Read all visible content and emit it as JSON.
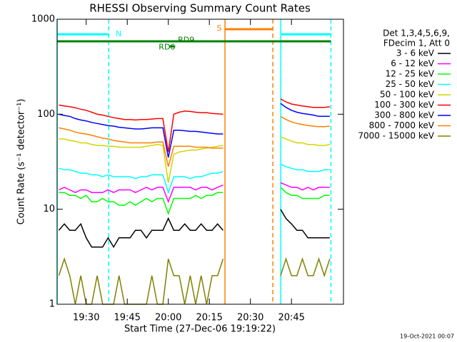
{
  "chart_data": {
    "type": "line",
    "title": "RHESSI Observing Summary Count Rates",
    "xlabel": "Start Time (27-Dec-06 19:19:22)",
    "ylabel": "Count Rate (s⁻¹ detector⁻¹)",
    "timestamp": "19-Oct-2021 00:07",
    "legend_header": [
      "Det 1,3,4,5,6,9,",
      "FDecim 1, Att 0"
    ],
    "log_y": true,
    "xlim": [
      19.37,
      124
    ],
    "ylim": [
      1,
      1000
    ],
    "yticks": [
      1,
      10,
      100,
      1000
    ],
    "xticks": [
      {
        "value": 30,
        "label": "19:30"
      },
      {
        "value": 45,
        "label": "19:45"
      },
      {
        "value": 60,
        "label": "20:00"
      },
      {
        "value": 75,
        "label": "20:15"
      },
      {
        "value": 90,
        "label": "20:30"
      },
      {
        "value": 105,
        "label": "20:45"
      }
    ],
    "x": [
      20,
      22,
      24,
      26,
      28,
      30,
      32,
      34,
      36,
      38,
      40,
      42,
      44,
      46,
      48,
      50,
      52,
      54,
      56,
      58,
      60,
      62,
      64,
      66,
      68,
      70,
      72,
      74,
      76,
      78,
      80,
      90,
      101,
      103,
      105,
      107,
      109,
      111,
      113,
      115,
      117,
      119
    ],
    "series": [
      {
        "name": "3 - 6 keV",
        "color": "#000000",
        "values": [
          6,
          7,
          6,
          6,
          7,
          5,
          4,
          4,
          4,
          5,
          4,
          5,
          5,
          5,
          6,
          6,
          5,
          6,
          6,
          6,
          8,
          6,
          6,
          7,
          6,
          6,
          7,
          6,
          6,
          7,
          6,
          null,
          10,
          8,
          7,
          6,
          6,
          5,
          5,
          5,
          5,
          5
        ]
      },
      {
        "name": "6 - 12 keV",
        "color": "#ff00ff",
        "values": [
          16,
          17,
          16,
          15,
          16,
          16,
          15,
          15,
          15,
          16,
          15,
          16,
          16,
          16,
          15,
          16,
          17,
          16,
          17,
          17,
          12,
          17,
          17,
          17,
          17,
          16,
          17,
          17,
          16,
          17,
          18,
          null,
          19,
          18,
          17,
          17,
          16,
          17,
          16,
          17,
          17,
          17
        ]
      },
      {
        "name": "12 - 25 keV",
        "color": "#00ff00",
        "values": [
          15,
          15,
          14,
          14,
          13,
          14,
          12,
          12,
          13,
          12,
          12,
          11,
          11,
          12,
          11,
          12,
          13,
          12,
          13,
          13,
          9,
          13,
          13,
          13,
          13,
          14,
          13,
          14,
          14,
          15,
          15,
          null,
          17,
          15,
          14,
          14,
          13,
          13,
          13,
          13,
          14,
          14
        ]
      },
      {
        "name": "25 - 50 keV",
        "color": "#00ffff",
        "values": [
          27,
          26,
          26,
          25,
          24,
          24,
          23,
          23,
          22,
          23,
          22,
          22,
          22,
          22,
          21,
          22,
          22,
          23,
          23,
          23,
          15,
          22,
          22,
          22,
          21,
          22,
          22,
          23,
          24,
          24,
          25,
          null,
          30,
          28,
          27,
          26,
          26,
          25,
          25,
          25,
          26,
          26
        ]
      },
      {
        "name": "50 - 100 keV",
        "color": "#d4d400",
        "values": [
          55,
          55,
          53,
          52,
          50,
          50,
          48,
          47,
          47,
          46,
          46,
          45,
          45,
          45,
          45,
          45,
          46,
          47,
          48,
          47,
          19,
          38,
          40,
          41,
          42,
          42,
          43,
          44,
          45,
          46,
          47,
          null,
          58,
          55,
          52,
          50,
          50,
          48,
          48,
          47,
          47,
          48
        ]
      },
      {
        "name": "100 - 300 keV",
        "color": "#ff0000",
        "values": [
          125,
          122,
          120,
          117,
          113,
          110,
          105,
          100,
          98,
          95,
          92,
          90,
          88,
          88,
          87,
          88,
          88,
          89,
          90,
          90,
          40,
          100,
          105,
          108,
          107,
          105,
          104,
          104,
          102,
          101,
          100,
          null,
          145,
          135,
          128,
          125,
          122,
          120,
          118,
          118,
          118,
          120
        ]
      },
      {
        "name": "300 - 800 keV",
        "color": "#0000ff",
        "values": [
          100,
          97,
          95,
          90,
          87,
          85,
          82,
          80,
          78,
          76,
          75,
          73,
          72,
          71,
          70,
          70,
          71,
          72,
          72,
          72,
          35,
          68,
          68,
          67,
          66,
          66,
          65,
          64,
          63,
          62,
          62,
          null,
          130,
          118,
          110,
          105,
          102,
          100,
          98,
          95,
          95,
          95
        ]
      },
      {
        "name": "800 - 7000 keV",
        "color": "#ff8000",
        "values": [
          72,
          70,
          68,
          65,
          63,
          62,
          60,
          58,
          56,
          55,
          53,
          52,
          51,
          50,
          50,
          50,
          50,
          50,
          51,
          51,
          28,
          46,
          46,
          46,
          46,
          45,
          45,
          45,
          44,
          44,
          44,
          null,
          95,
          88,
          83,
          80,
          78,
          76,
          75,
          74,
          74,
          75
        ]
      },
      {
        "name": "7000 - 15000 keV",
        "color": "#808000",
        "values": [
          2,
          3,
          2,
          1,
          2,
          1,
          1,
          2,
          1,
          1,
          1,
          2,
          1,
          1,
          1,
          1,
          1,
          2,
          1,
          1,
          3,
          2,
          2,
          1,
          2,
          1,
          2,
          1,
          2,
          2,
          3,
          null,
          2,
          3,
          2,
          2,
          3,
          2,
          2,
          3,
          2,
          3
        ]
      }
    ],
    "vlines": [
      {
        "x": 19.37,
        "color": "#00ffff",
        "dashed": false
      },
      {
        "x": 38.2,
        "color": "#00ffff",
        "dashed": true
      },
      {
        "x": 80.7,
        "color": "#ff8000",
        "dashed": false
      },
      {
        "x": 98.2,
        "color": "#ff8000",
        "dashed": true
      },
      {
        "x": 101.1,
        "color": "#00ffff",
        "dashed": false
      },
      {
        "x": 119.4,
        "color": "#00ffff",
        "dashed": true
      }
    ],
    "bars": [
      {
        "x": [
          19.37,
          38.2
        ],
        "y": 695,
        "color": "#00ffff"
      },
      {
        "x": [
          101.1,
          119.4
        ],
        "y": 695,
        "color": "#00ffff"
      },
      {
        "x": [
          80.7,
          98.2
        ],
        "y": 785,
        "color": "#ff8000"
      },
      {
        "x": [
          19.37,
          119.4
        ],
        "y": 585,
        "color": "#008000"
      },
      {
        "x": [
          60.4,
          62.5
        ],
        "y": 518,
        "color": "#008000"
      }
    ],
    "labels": [
      {
        "text": "N",
        "x": 40.8,
        "y": 695,
        "color": "#00ffff"
      },
      {
        "text": "S",
        "x": 77.7,
        "y": 800,
        "color": "#ff8000"
      },
      {
        "text": "RD9",
        "x": 63.5,
        "y": 600,
        "color": "#008000"
      },
      {
        "text": "RD6",
        "x": 56.5,
        "y": 505,
        "color": "#008000"
      }
    ]
  }
}
